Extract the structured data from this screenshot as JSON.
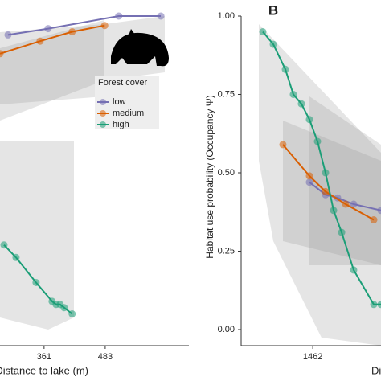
{
  "chart_data": [
    {
      "type": "line",
      "xlabel": "Distance to lake (m)",
      "legend_title": "Forest cover",
      "xlim": [
        273,
        650
      ],
      "ylim": [
        0,
        1
      ],
      "xticks": [
        361,
        483
      ],
      "series": [
        {
          "name": "low",
          "color": "#7570b3",
          "x": [
            289,
            369,
            510,
            594
          ],
          "values": [
            0.94,
            0.96,
            1.0,
            1.0
          ]
        },
        {
          "name": "medium",
          "color": "#d95f02",
          "x": [
            273,
            353,
            417,
            482
          ],
          "values": [
            0.88,
            0.92,
            0.95,
            0.97
          ]
        },
        {
          "name": "high",
          "color": "#1b9e77",
          "x": [
            281,
            305,
            345,
            377,
            385,
            393,
            401,
            417
          ],
          "values": [
            0.27,
            0.23,
            0.15,
            0.09,
            0.08,
            0.08,
            0.07,
            0.05
          ]
        }
      ]
    },
    {
      "type": "line",
      "title": "B",
      "ylabel": "Habitat use probability (Occupancy Ψ)",
      "xlabel": "Distance to lake (m)",
      "xlim": [
        0,
        4400
      ],
      "ylim": [
        0,
        1
      ],
      "xticks": [
        1462
      ],
      "yticks": [
        {
          "value": 0,
          "label": "0.00"
        },
        {
          "value": 0.25,
          "label": "0.25"
        },
        {
          "value": 0.5,
          "label": "0.50"
        },
        {
          "value": 0.75,
          "label": "0.75"
        },
        {
          "value": 1,
          "label": "1.00"
        }
      ],
      "series": [
        {
          "color": "#7570b3",
          "x": [
            1372,
            1808,
            2135,
            2570,
            3311
          ],
          "values": [
            0.47,
            0.43,
            0.42,
            0.4,
            0.38
          ]
        },
        {
          "color": "#d95f02",
          "x": [
            653,
            1372,
            1808,
            2353,
            3115
          ],
          "values": [
            0.59,
            0.49,
            0.44,
            0.4,
            0.35
          ]
        },
        {
          "color": "#1b9e77",
          "x": [
            109,
            392,
            719,
            936,
            1154,
            1372,
            1590,
            1808,
            2026,
            2244,
            2570,
            3115,
            3311
          ],
          "values": [
            0.95,
            0.91,
            0.83,
            0.75,
            0.72,
            0.67,
            0.6,
            0.5,
            0.38,
            0.31,
            0.19,
            0.08,
            0.08
          ]
        }
      ]
    }
  ]
}
